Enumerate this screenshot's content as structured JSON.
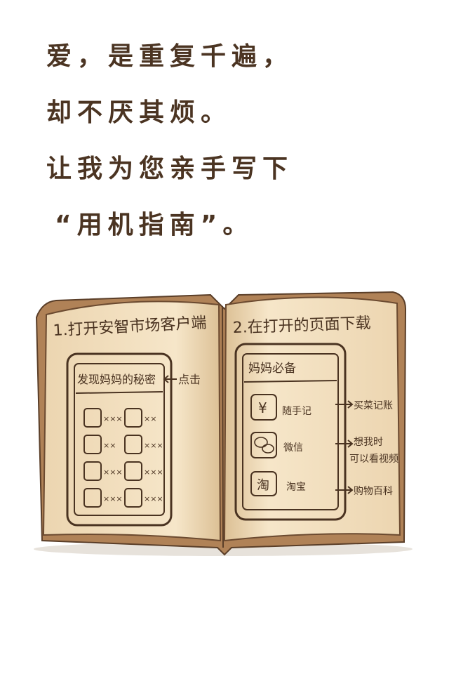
{
  "poem": {
    "lines": [
      "爱，是重复千遍，",
      "却不厌其烦。",
      "让我为您亲手写下",
      "“用机指南”。"
    ]
  },
  "left_page": {
    "heading": "1.打开安智市场客户端",
    "phone_title": "发现妈妈的秘密",
    "annotation": "点击",
    "grid_labels": [
      "×××",
      "××",
      "××",
      "×××",
      "×××",
      "×××",
      "×××",
      "×××"
    ]
  },
  "right_page": {
    "heading": "2.在打开的页面下载",
    "phone_title": "妈妈必备",
    "apps": [
      {
        "icon_glyph": "¥",
        "name": "随手记",
        "annotation": "买菜记账"
      },
      {
        "icon_glyph": "",
        "name": "微信",
        "annotation_line1": "想我时",
        "annotation_line2": "可以看视频"
      },
      {
        "icon_glyph": "淘",
        "name": "淘宝",
        "annotation": "购物百科"
      }
    ]
  },
  "colors": {
    "ink": "#4a3321",
    "paper": "#f4e2c3",
    "paper_shadow": "#e2c79e",
    "cover": "#b6865a"
  }
}
